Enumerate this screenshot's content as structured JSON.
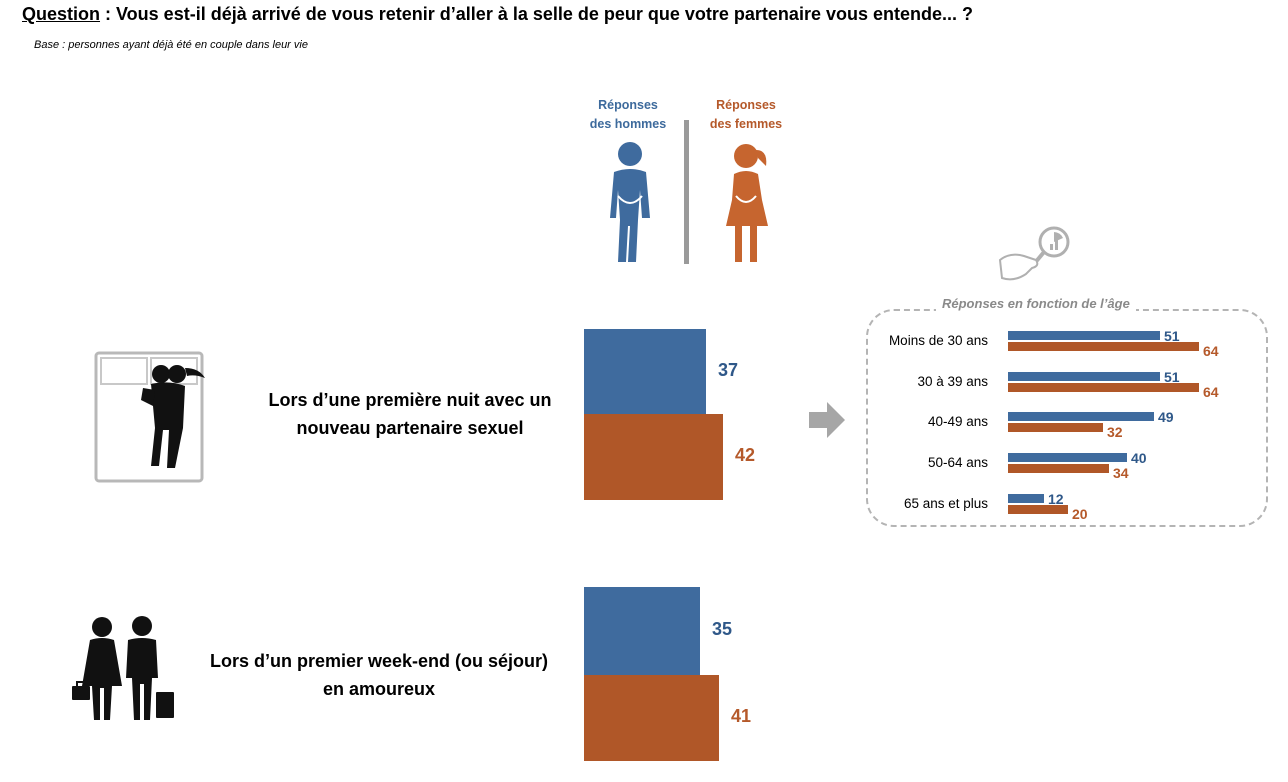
{
  "question": {
    "label": "Question",
    "text": " : Vous est-il déjà arrivé de vous retenir d’aller à la selle de peur que votre partenaire vous entende... ?"
  },
  "base": "Base : personnes ayant déjà été en couple dans leur vie",
  "legend": {
    "men_line1": "Réponses",
    "men_line2": "des hommes",
    "women_line1": "Réponses",
    "women_line2": "des femmes"
  },
  "colors": {
    "men": "#3f6b9e",
    "women": "#b05728"
  },
  "icons": [
    "men-figure-icon",
    "women-figure-icon",
    "bed-couple-icon",
    "travel-couple-icon",
    "arrow-right-icon",
    "magnifier-chart-icon"
  ],
  "scenarios": [
    {
      "line1": "Lors d’une première nuit avec un",
      "line2": "nouveau partenaire sexuel"
    },
    {
      "line1": "Lors d’un premier week-end (ou séjour)",
      "line2": "en amoureux"
    }
  ],
  "age_panel_title": "Réponses en fonction de l’âge",
  "chart_data": [
    {
      "type": "bar",
      "orientation": "horizontal",
      "categories": [
        "Lors d’une première nuit avec un nouveau partenaire sexuel",
        "Lors d’un premier week-end (ou séjour) en amoureux"
      ],
      "series": [
        {
          "name": "Réponses des hommes",
          "values": [
            37,
            35
          ]
        },
        {
          "name": "Réponses des femmes",
          "values": [
            42,
            41
          ]
        }
      ],
      "xlim": [
        0,
        100
      ]
    },
    {
      "type": "bar",
      "orientation": "horizontal",
      "title": "Réponses en fonction de l’âge",
      "categories": [
        "Moins de 30 ans",
        "30 à 39 ans",
        "40-49 ans",
        "50-64 ans",
        "65 ans et plus"
      ],
      "series": [
        {
          "name": "Réponses des hommes",
          "values": [
            51,
            51,
            49,
            40,
            12
          ]
        },
        {
          "name": "Réponses des femmes",
          "values": [
            64,
            64,
            32,
            34,
            20
          ]
        }
      ],
      "xlim": [
        0,
        100
      ]
    }
  ]
}
